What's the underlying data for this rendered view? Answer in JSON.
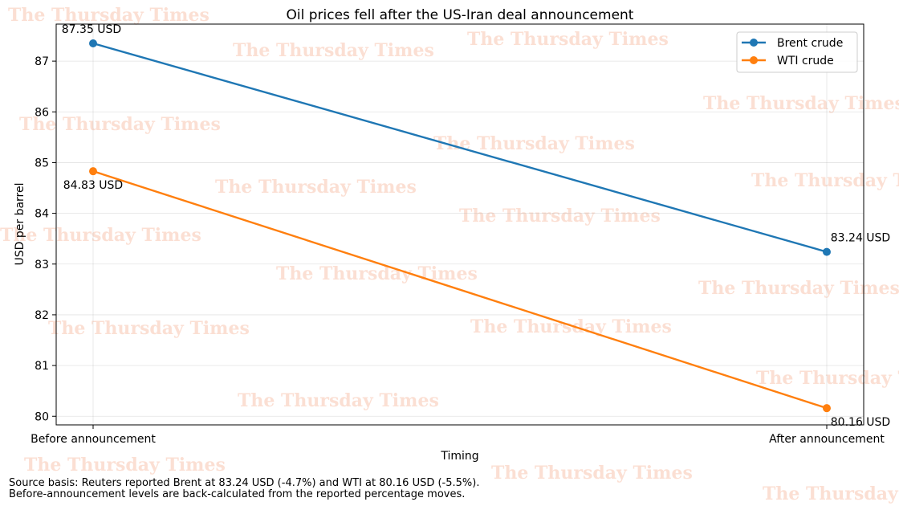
{
  "chart_data": {
    "type": "line",
    "title": "Oil prices fell after the US-Iran deal announcement",
    "xlabel": "Timing",
    "ylabel": "USD per barrel",
    "categories": [
      "Before announcement",
      "After announcement"
    ],
    "ylim": [
      79.83,
      87.73
    ],
    "yticks": [
      80,
      81,
      82,
      83,
      84,
      85,
      86,
      87
    ],
    "grid": true,
    "legend_position": "top-right",
    "series": [
      {
        "name": "Brent crude",
        "values": [
          87.35,
          83.24
        ],
        "labels": [
          "87.35 USD",
          "83.24 USD"
        ],
        "color": "#1f77b4"
      },
      {
        "name": "WTI crude",
        "values": [
          84.83,
          80.16
        ],
        "labels": [
          "84.83 USD",
          "80.16 USD"
        ],
        "color": "#ff7f0e"
      }
    ]
  },
  "watermark": "The Thursday Times",
  "footnotes": [
    "Source basis: Reuters reported Brent at 83.24 USD (-4.7%) and WTI at 80.16 USD (-5.5%).",
    "Before-announcement levels are back-calculated from the reported percentage moves."
  ]
}
